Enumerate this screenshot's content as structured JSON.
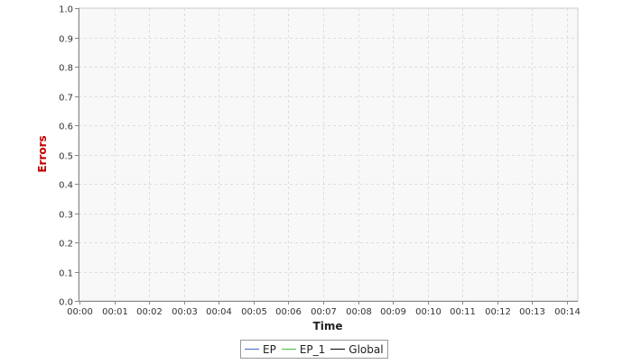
{
  "colors": {
    "plot_background": "#f8f8f8",
    "gridline": "#dddddd",
    "axis": "#888888",
    "ylabel": "#c00000",
    "xlabel": "#222222",
    "tick_label": "#333333"
  },
  "chart_data": {
    "type": "line",
    "title": "",
    "xlabel": "Time",
    "ylabel": "Errors",
    "ylim": [
      0,
      1.0
    ],
    "y_ticks": [
      0.0,
      0.1,
      0.2,
      0.3,
      0.4,
      0.5,
      0.6,
      0.7,
      0.8,
      0.9,
      1.0
    ],
    "y_tick_labels": [
      "0.0",
      "0.1",
      "0.2",
      "0.3",
      "0.4",
      "0.5",
      "0.6",
      "0.7",
      "0.8",
      "0.9",
      "1.0"
    ],
    "x_tick_labels": [
      "00:00",
      "00:01",
      "00:02",
      "00:03",
      "00:04",
      "00:05",
      "00:06",
      "00:07",
      "00:08",
      "00:09",
      "00:10",
      "00:11",
      "00:12",
      "00:13",
      "00:14"
    ],
    "grid": true,
    "legend_position": "bottom-center",
    "series": [
      {
        "name": "EP",
        "color": "#4466cc",
        "values": []
      },
      {
        "name": "EP_1",
        "color": "#44bb44",
        "values": []
      },
      {
        "name": "Global",
        "color": "#000000",
        "values": []
      }
    ]
  }
}
